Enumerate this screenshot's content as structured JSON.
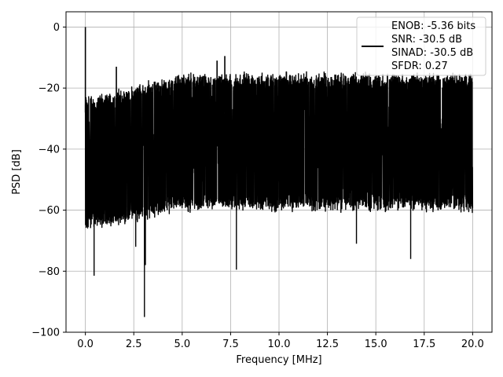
{
  "chart_data": {
    "type": "line",
    "title": "",
    "xlabel": "Frequency [MHz]",
    "ylabel": "PSD [dB]",
    "xlim": [
      -1.0,
      21.0
    ],
    "ylim": [
      -100,
      5
    ],
    "x_ticks": [
      0.0,
      2.5,
      5.0,
      7.5,
      10.0,
      12.5,
      15.0,
      17.5,
      20.0
    ],
    "x_tick_labels": [
      "0.0",
      "2.5",
      "5.0",
      "7.5",
      "10.0",
      "12.5",
      "15.0",
      "17.5",
      "20.0"
    ],
    "y_ticks": [
      0,
      -20,
      -40,
      -60,
      -80,
      -100
    ],
    "y_tick_labels": [
      "0",
      "−20",
      "−40",
      "−60",
      "−80",
      "−100"
    ],
    "grid": true,
    "legend_position": "top-right",
    "legend_lines": [
      "ENOB: -5.36 bits",
      "SNR: -30.5 dB",
      "SINAD: -30.5 dB",
      "SFDR: 0.27"
    ],
    "series": [
      {
        "color": "#000000",
        "x_range": [
          0.0,
          20.0
        ],
        "noise_floor_top_db": [
          -24,
          -16
        ],
        "noise_floor_bottom_db": [
          -65,
          -58
        ],
        "spikes": [
          {
            "x": 0.0,
            "y": 0.0
          },
          {
            "x": 1.6,
            "y": -13.0
          },
          {
            "x": 6.8,
            "y": -11.0
          },
          {
            "x": 7.2,
            "y": -9.5
          }
        ],
        "dips": [
          {
            "x": 0.45,
            "y": -81.5
          },
          {
            "x": 3.05,
            "y": -95.0
          },
          {
            "x": 3.1,
            "y": -78.0
          },
          {
            "x": 7.8,
            "y": -79.5
          },
          {
            "x": 2.6,
            "y": -72.0
          },
          {
            "x": 16.8,
            "y": -76.0
          },
          {
            "x": 14.0,
            "y": -71.0
          }
        ]
      }
    ]
  }
}
